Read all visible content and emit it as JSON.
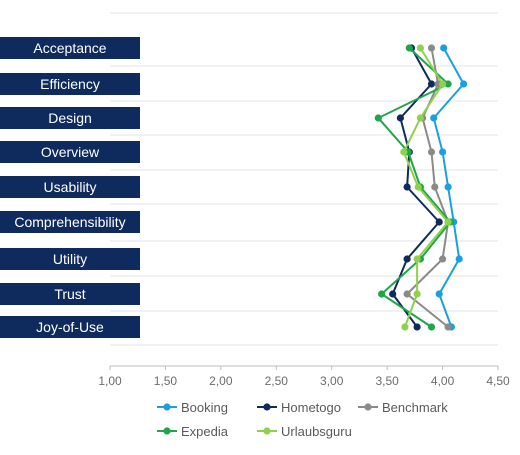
{
  "chart_data": {
    "type": "line",
    "orientation": "horizontal",
    "title": "",
    "xlabel": "",
    "ylabel": "",
    "xlim": [
      1.0,
      4.5
    ],
    "xticks": [
      "1,00",
      "1,50",
      "2,00",
      "2,50",
      "3,00",
      "3,50",
      "4,00",
      "4,50"
    ],
    "grid": "horizontal lines at category boundaries",
    "legend_position": "bottom",
    "categories": [
      "Acceptance",
      "Efficiency",
      "Design",
      "Overview",
      "Usability",
      "Comprehensibility",
      "Utility",
      "Trust",
      "Joy-of-Use"
    ],
    "series": [
      {
        "name": "Booking",
        "color": "#1a9fe0",
        "values": [
          4.01,
          4.19,
          3.92,
          4.0,
          4.05,
          4.1,
          4.15,
          3.97,
          4.08
        ]
      },
      {
        "name": "Hometogo",
        "color": "#0f2a5c",
        "values": [
          3.72,
          3.9,
          3.62,
          3.7,
          3.68,
          3.97,
          3.68,
          3.55,
          3.77
        ]
      },
      {
        "name": "Benchmark",
        "color": "#8a8a8a",
        "values": [
          3.9,
          3.96,
          3.82,
          3.9,
          3.93,
          4.05,
          4.0,
          3.68,
          4.05
        ]
      },
      {
        "name": "Expedia",
        "color": "#1fa64a",
        "values": [
          3.7,
          4.05,
          3.42,
          3.69,
          3.8,
          4.07,
          3.8,
          3.45,
          3.9
        ]
      },
      {
        "name": "Urlaubsguru",
        "color": "#8ed14b",
        "values": [
          3.8,
          4.0,
          3.8,
          3.65,
          3.78,
          4.05,
          3.77,
          3.77,
          3.66
        ]
      }
    ]
  }
}
